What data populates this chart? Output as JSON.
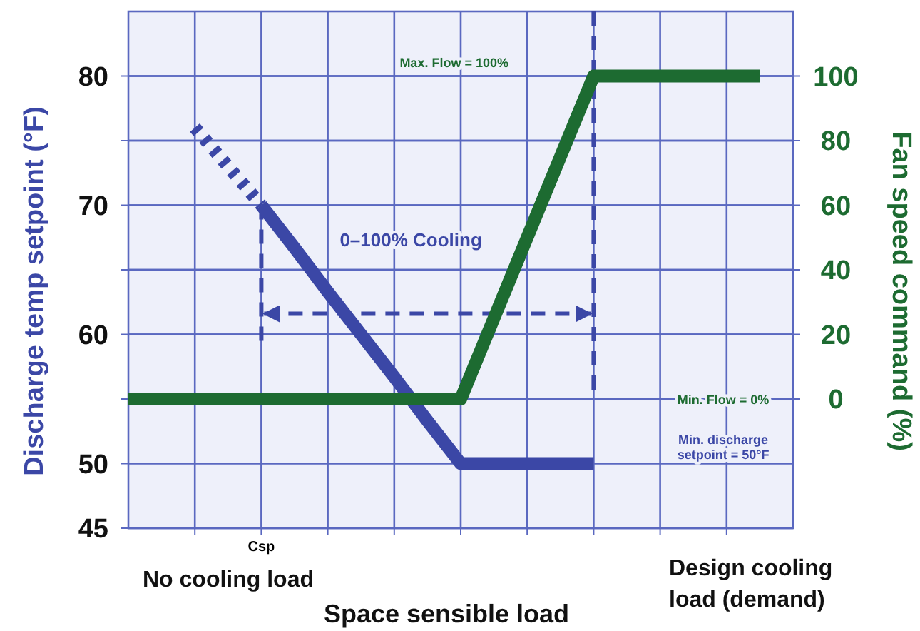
{
  "chart_data": {
    "type": "line",
    "xlabel": "Space sensible load",
    "ylabel": "Discharge temp setpoint (°F)",
    "y2label": "Fan speed command (%)",
    "categories": [
      null,
      null,
      null,
      null,
      null,
      null,
      null,
      null,
      null,
      null,
      null,
      null,
      null,
      null,
      null,
      null,
      null,
      null,
      null,
      null
    ],
    "ylim": [
      45,
      85
    ],
    "yticks": [
      45,
      50,
      {
        "value": 55,
        "label": null
      },
      60,
      {
        "value": 65,
        "label": null
      },
      70,
      {
        "value": 75,
        "label": null
      },
      80
    ],
    "y2lim": [
      -40,
      120
    ],
    "y2ticks": [
      0,
      20,
      40,
      60,
      80,
      100
    ],
    "grid": true,
    "series": [
      {
        "color": "#3b47a6",
        "line_style": "dotted",
        "values": [
          null,
          null,
          76,
          73,
          70,
          null,
          null,
          null,
          null,
          null,
          null,
          null,
          null,
          null,
          null,
          null,
          null,
          null,
          null,
          null
        ]
      },
      {
        "color": "#3b47a6",
        "line_style": "solid",
        "values": [
          null,
          null,
          null,
          null,
          70,
          66.7,
          63.3,
          60,
          56.7,
          53.3,
          50,
          50,
          50,
          50,
          50,
          null,
          null,
          null,
          null,
          null
        ]
      },
      {
        "color": "#1d6b31",
        "line_style": "solid",
        "axis": "y2",
        "values": [
          0,
          0,
          0,
          0,
          0,
          0,
          0,
          0,
          0,
          0,
          0,
          25,
          50,
          75,
          100,
          100,
          100,
          100,
          100,
          100
        ]
      }
    ],
    "annotations": [
      "0–100% Cooling",
      "Max. Flow = 100%",
      "Min. Flow = 0%",
      "Min. discharge setpoint = 50°F",
      "Csp",
      "No cooling load",
      "Design cooling load (demand)"
    ]
  }
}
